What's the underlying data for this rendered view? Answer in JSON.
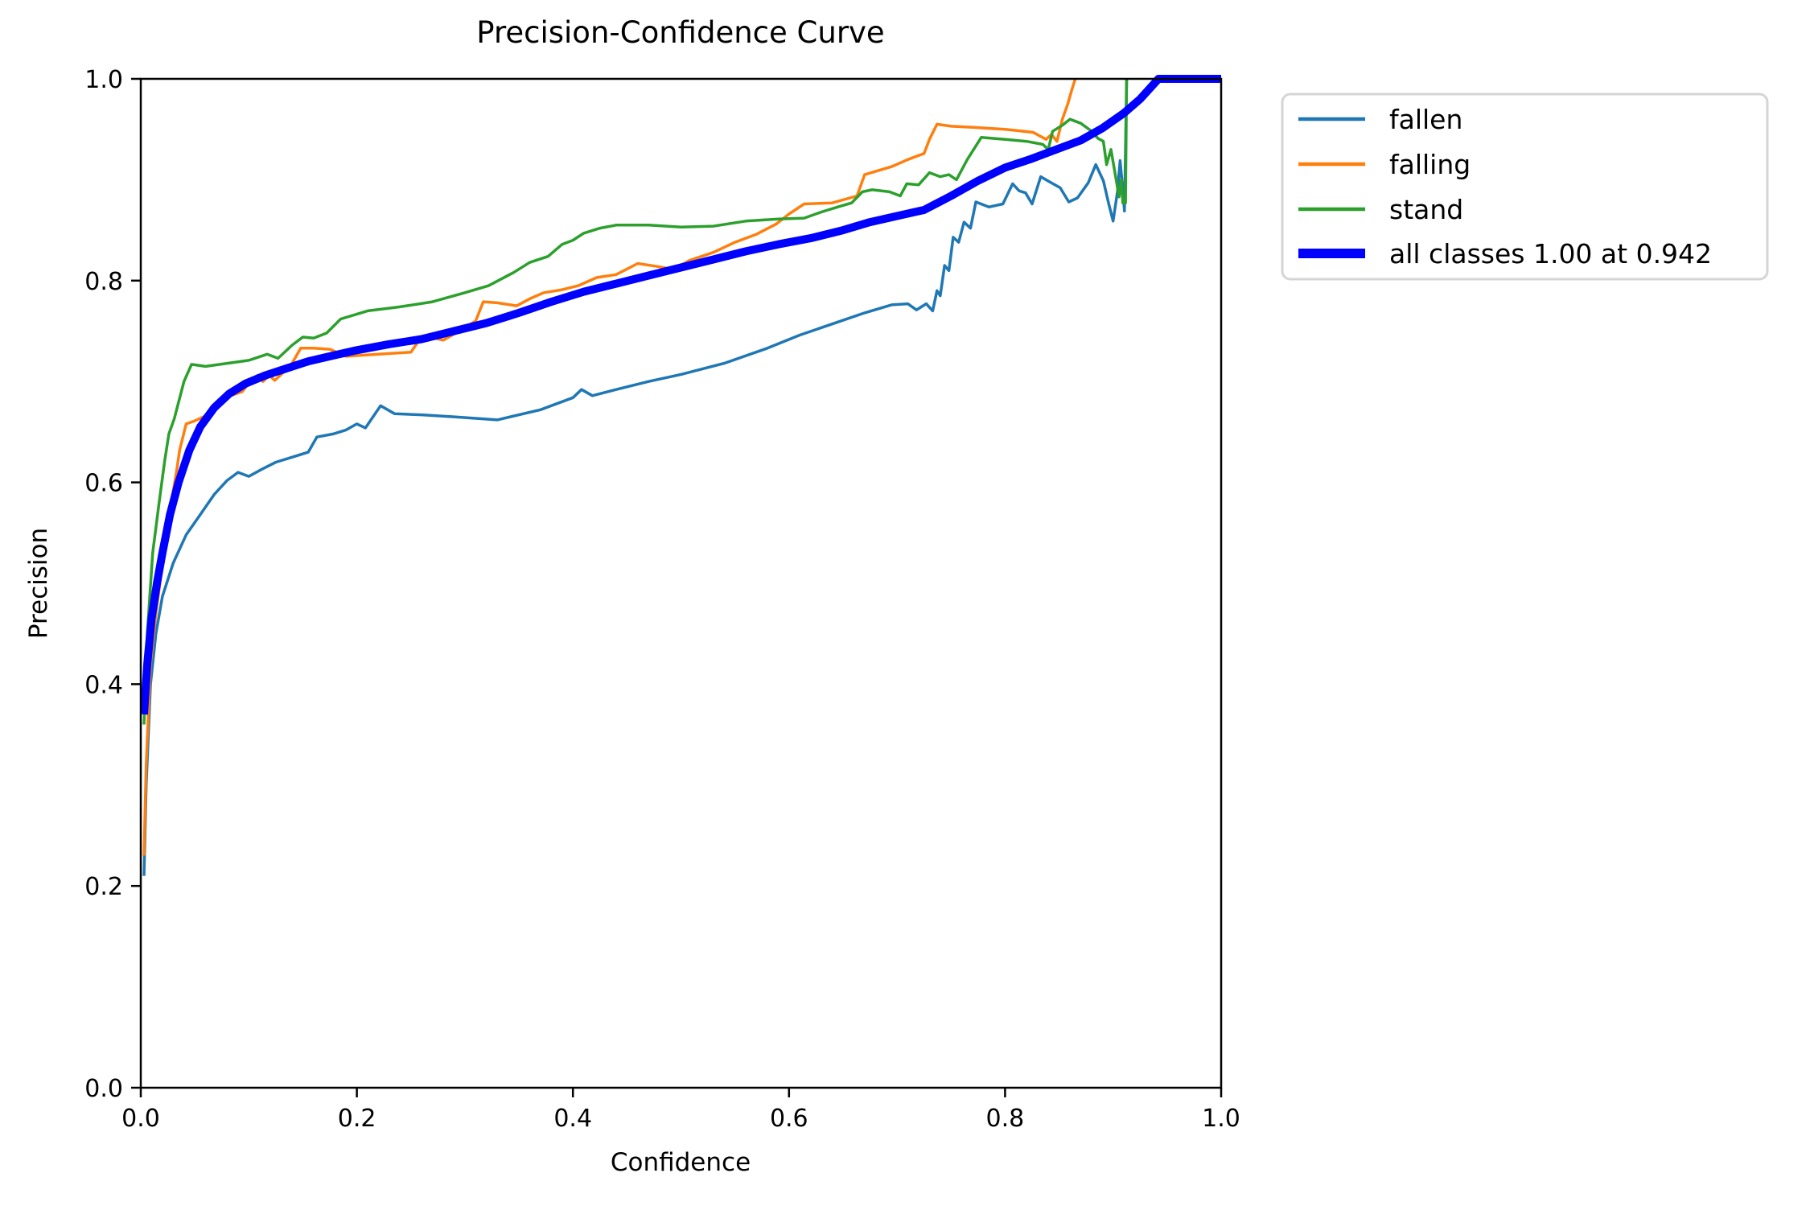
{
  "figure": {
    "background": "#ffffff",
    "spine_color": "#000000"
  },
  "chart_data": {
    "type": "line",
    "title": "Precision-Confidence Curve",
    "xlabel": "Confidence",
    "ylabel": "Precision",
    "xlim": [
      0.0,
      1.0
    ],
    "ylim": [
      0.0,
      1.0
    ],
    "x_ticks": [
      "0.0",
      "0.2",
      "0.4",
      "0.6",
      "0.8",
      "1.0"
    ],
    "y_ticks": [
      "0.0",
      "0.2",
      "0.4",
      "0.6",
      "0.8",
      "1.0"
    ],
    "grid": false,
    "legend_position": "upper-right-outside",
    "series": [
      {
        "name": "fallen",
        "color": "#1f77b4",
        "width": 3.5,
        "points": [
          [
            0.003,
            0.21
          ],
          [
            0.005,
            0.3
          ],
          [
            0.009,
            0.4
          ],
          [
            0.014,
            0.45
          ],
          [
            0.02,
            0.487
          ],
          [
            0.03,
            0.52
          ],
          [
            0.042,
            0.548
          ],
          [
            0.055,
            0.568
          ],
          [
            0.068,
            0.588
          ],
          [
            0.08,
            0.602
          ],
          [
            0.09,
            0.61
          ],
          [
            0.1,
            0.606
          ],
          [
            0.112,
            0.613
          ],
          [
            0.125,
            0.62
          ],
          [
            0.14,
            0.625
          ],
          [
            0.155,
            0.63
          ],
          [
            0.163,
            0.645
          ],
          [
            0.178,
            0.648
          ],
          [
            0.19,
            0.652
          ],
          [
            0.2,
            0.658
          ],
          [
            0.208,
            0.654
          ],
          [
            0.222,
            0.676
          ],
          [
            0.235,
            0.668
          ],
          [
            0.26,
            0.667
          ],
          [
            0.29,
            0.665
          ],
          [
            0.33,
            0.662
          ],
          [
            0.37,
            0.672
          ],
          [
            0.4,
            0.684
          ],
          [
            0.408,
            0.692
          ],
          [
            0.418,
            0.686
          ],
          [
            0.44,
            0.692
          ],
          [
            0.47,
            0.7
          ],
          [
            0.5,
            0.707
          ],
          [
            0.54,
            0.718
          ],
          [
            0.58,
            0.733
          ],
          [
            0.61,
            0.746
          ],
          [
            0.64,
            0.757
          ],
          [
            0.67,
            0.768
          ],
          [
            0.695,
            0.776
          ],
          [
            0.71,
            0.777
          ],
          [
            0.718,
            0.771
          ],
          [
            0.727,
            0.777
          ],
          [
            0.733,
            0.77
          ],
          [
            0.737,
            0.79
          ],
          [
            0.74,
            0.785
          ],
          [
            0.744,
            0.815
          ],
          [
            0.748,
            0.81
          ],
          [
            0.752,
            0.843
          ],
          [
            0.757,
            0.838
          ],
          [
            0.762,
            0.858
          ],
          [
            0.768,
            0.852
          ],
          [
            0.773,
            0.878
          ],
          [
            0.785,
            0.873
          ],
          [
            0.798,
            0.876
          ],
          [
            0.807,
            0.896
          ],
          [
            0.813,
            0.889
          ],
          [
            0.819,
            0.887
          ],
          [
            0.825,
            0.876
          ],
          [
            0.833,
            0.903
          ],
          [
            0.841,
            0.898
          ],
          [
            0.851,
            0.892
          ],
          [
            0.859,
            0.878
          ],
          [
            0.867,
            0.882
          ],
          [
            0.877,
            0.897
          ],
          [
            0.884,
            0.915
          ],
          [
            0.891,
            0.899
          ],
          [
            0.896,
            0.876
          ],
          [
            0.9,
            0.859
          ],
          [
            0.904,
            0.888
          ],
          [
            0.9065,
            0.919
          ],
          [
            0.909,
            0.889
          ],
          [
            0.9105,
            0.869
          ],
          [
            0.9115,
            0.93
          ],
          [
            0.9125,
            1.0
          ]
        ]
      },
      {
        "name": "falling",
        "color": "#ff7f0e",
        "width": 3.5,
        "points": [
          [
            0.003,
            0.23
          ],
          [
            0.005,
            0.32
          ],
          [
            0.009,
            0.42
          ],
          [
            0.014,
            0.47
          ],
          [
            0.019,
            0.51
          ],
          [
            0.024,
            0.55
          ],
          [
            0.029,
            0.585
          ],
          [
            0.033,
            0.61
          ],
          [
            0.036,
            0.632
          ],
          [
            0.042,
            0.658
          ],
          [
            0.05,
            0.661
          ],
          [
            0.06,
            0.666
          ],
          [
            0.072,
            0.678
          ],
          [
            0.083,
            0.686
          ],
          [
            0.094,
            0.69
          ],
          [
            0.102,
            0.701
          ],
          [
            0.108,
            0.706
          ],
          [
            0.113,
            0.7
          ],
          [
            0.119,
            0.706
          ],
          [
            0.124,
            0.701
          ],
          [
            0.13,
            0.707
          ],
          [
            0.139,
            0.716
          ],
          [
            0.148,
            0.733
          ],
          [
            0.16,
            0.733
          ],
          [
            0.175,
            0.732
          ],
          [
            0.19,
            0.725
          ],
          [
            0.22,
            0.727
          ],
          [
            0.25,
            0.729
          ],
          [
            0.257,
            0.74
          ],
          [
            0.268,
            0.744
          ],
          [
            0.28,
            0.741
          ],
          [
            0.298,
            0.752
          ],
          [
            0.31,
            0.76
          ],
          [
            0.317,
            0.779
          ],
          [
            0.33,
            0.778
          ],
          [
            0.348,
            0.775
          ],
          [
            0.36,
            0.782
          ],
          [
            0.373,
            0.788
          ],
          [
            0.39,
            0.791
          ],
          [
            0.405,
            0.795
          ],
          [
            0.422,
            0.803
          ],
          [
            0.44,
            0.806
          ],
          [
            0.46,
            0.817
          ],
          [
            0.478,
            0.814
          ],
          [
            0.493,
            0.811
          ],
          [
            0.508,
            0.82
          ],
          [
            0.53,
            0.828
          ],
          [
            0.55,
            0.838
          ],
          [
            0.57,
            0.846
          ],
          [
            0.588,
            0.856
          ],
          [
            0.6,
            0.866
          ],
          [
            0.614,
            0.876
          ],
          [
            0.64,
            0.877
          ],
          [
            0.663,
            0.884
          ],
          [
            0.67,
            0.905
          ],
          [
            0.695,
            0.913
          ],
          [
            0.71,
            0.92
          ],
          [
            0.725,
            0.926
          ],
          [
            0.73,
            0.94
          ],
          [
            0.737,
            0.955
          ],
          [
            0.75,
            0.953
          ],
          [
            0.77,
            0.952
          ],
          [
            0.8,
            0.95
          ],
          [
            0.826,
            0.947
          ],
          [
            0.838,
            0.94
          ],
          [
            0.843,
            0.945
          ],
          [
            0.848,
            0.938
          ],
          [
            0.853,
            0.96
          ],
          [
            0.858,
            0.975
          ],
          [
            0.862,
            0.99
          ],
          [
            0.865,
            1.0
          ]
        ]
      },
      {
        "name": "stand",
        "color": "#2ca02c",
        "width": 3.5,
        "points": [
          [
            0.003,
            0.36
          ],
          [
            0.006,
            0.45
          ],
          [
            0.011,
            0.53
          ],
          [
            0.017,
            0.58
          ],
          [
            0.022,
            0.62
          ],
          [
            0.026,
            0.648
          ],
          [
            0.031,
            0.663
          ],
          [
            0.04,
            0.7
          ],
          [
            0.047,
            0.717
          ],
          [
            0.06,
            0.715
          ],
          [
            0.08,
            0.718
          ],
          [
            0.1,
            0.721
          ],
          [
            0.117,
            0.727
          ],
          [
            0.127,
            0.723
          ],
          [
            0.14,
            0.736
          ],
          [
            0.15,
            0.744
          ],
          [
            0.16,
            0.743
          ],
          [
            0.172,
            0.748
          ],
          [
            0.185,
            0.762
          ],
          [
            0.21,
            0.77
          ],
          [
            0.24,
            0.774
          ],
          [
            0.27,
            0.779
          ],
          [
            0.3,
            0.788
          ],
          [
            0.322,
            0.795
          ],
          [
            0.345,
            0.808
          ],
          [
            0.36,
            0.818
          ],
          [
            0.377,
            0.824
          ],
          [
            0.39,
            0.836
          ],
          [
            0.4,
            0.84
          ],
          [
            0.41,
            0.847
          ],
          [
            0.425,
            0.852
          ],
          [
            0.44,
            0.855
          ],
          [
            0.47,
            0.855
          ],
          [
            0.5,
            0.853
          ],
          [
            0.53,
            0.854
          ],
          [
            0.56,
            0.859
          ],
          [
            0.59,
            0.861
          ],
          [
            0.614,
            0.862
          ],
          [
            0.63,
            0.868
          ],
          [
            0.645,
            0.873
          ],
          [
            0.658,
            0.877
          ],
          [
            0.668,
            0.888
          ],
          [
            0.677,
            0.89
          ],
          [
            0.693,
            0.888
          ],
          [
            0.703,
            0.884
          ],
          [
            0.709,
            0.896
          ],
          [
            0.72,
            0.895
          ],
          [
            0.73,
            0.907
          ],
          [
            0.74,
            0.903
          ],
          [
            0.748,
            0.905
          ],
          [
            0.755,
            0.9
          ],
          [
            0.765,
            0.92
          ],
          [
            0.778,
            0.942
          ],
          [
            0.8,
            0.94
          ],
          [
            0.82,
            0.938
          ],
          [
            0.835,
            0.935
          ],
          [
            0.84,
            0.93
          ],
          [
            0.844,
            0.948
          ],
          [
            0.853,
            0.954
          ],
          [
            0.86,
            0.96
          ],
          [
            0.87,
            0.956
          ],
          [
            0.879,
            0.949
          ],
          [
            0.886,
            0.941
          ],
          [
            0.891,
            0.938
          ],
          [
            0.894,
            0.915
          ],
          [
            0.898,
            0.93
          ],
          [
            0.902,
            0.905
          ],
          [
            0.9055,
            0.883
          ],
          [
            0.9075,
            0.9
          ],
          [
            0.909,
            0.877
          ],
          [
            0.9115,
            0.877
          ],
          [
            0.9125,
            1.0
          ]
        ]
      },
      {
        "name": "all classes 1.00 at 0.942",
        "color": "#0000ff",
        "width": 10,
        "points": [
          [
            0.003,
            0.37
          ],
          [
            0.006,
            0.42
          ],
          [
            0.01,
            0.465
          ],
          [
            0.015,
            0.5
          ],
          [
            0.02,
            0.53
          ],
          [
            0.027,
            0.568
          ],
          [
            0.035,
            0.6
          ],
          [
            0.045,
            0.632
          ],
          [
            0.055,
            0.655
          ],
          [
            0.068,
            0.674
          ],
          [
            0.082,
            0.688
          ],
          [
            0.097,
            0.698
          ],
          [
            0.115,
            0.706
          ],
          [
            0.135,
            0.713
          ],
          [
            0.155,
            0.72
          ],
          [
            0.175,
            0.725
          ],
          [
            0.2,
            0.731
          ],
          [
            0.23,
            0.737
          ],
          [
            0.26,
            0.742
          ],
          [
            0.29,
            0.75
          ],
          [
            0.32,
            0.758
          ],
          [
            0.35,
            0.768
          ],
          [
            0.38,
            0.779
          ],
          [
            0.41,
            0.789
          ],
          [
            0.44,
            0.797
          ],
          [
            0.47,
            0.805
          ],
          [
            0.5,
            0.813
          ],
          [
            0.53,
            0.821
          ],
          [
            0.56,
            0.829
          ],
          [
            0.59,
            0.836
          ],
          [
            0.62,
            0.842
          ],
          [
            0.65,
            0.85
          ],
          [
            0.675,
            0.858
          ],
          [
            0.7,
            0.864
          ],
          [
            0.725,
            0.87
          ],
          [
            0.75,
            0.884
          ],
          [
            0.775,
            0.899
          ],
          [
            0.8,
            0.912
          ],
          [
            0.825,
            0.921
          ],
          [
            0.85,
            0.931
          ],
          [
            0.87,
            0.939
          ],
          [
            0.89,
            0.951
          ],
          [
            0.91,
            0.966
          ],
          [
            0.925,
            0.98
          ],
          [
            0.942,
            1.0
          ],
          [
            1.0,
            1.0
          ]
        ]
      }
    ]
  },
  "legend": {
    "border_color": "#d5d5d5",
    "background": "#ffffff"
  }
}
